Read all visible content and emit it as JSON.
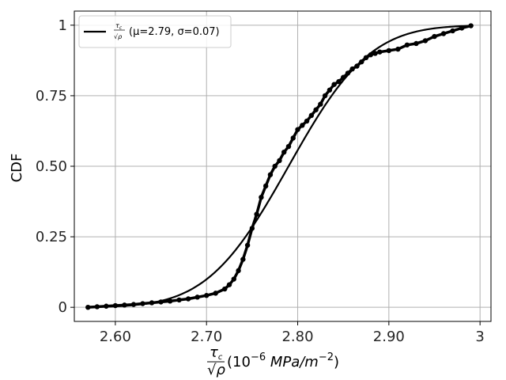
{
  "chart_data": {
    "type": "line",
    "title": "",
    "ylabel": "CDF",
    "xlabel": {
      "num": "τ",
      "num_sub": "c",
      "den": "√ρ",
      "unit_prefix": "(10",
      "unit_exp": "−6",
      "unit_main": " MPa/m",
      "unit_exp2": "−2",
      "unit_suffix": ")"
    },
    "xlim": [
      2.555,
      3.012
    ],
    "ylim": [
      -0.05,
      1.05
    ],
    "x_ticks": [
      2.6,
      2.7,
      2.8,
      2.9,
      3.0
    ],
    "x_tick_labels": [
      "2.60",
      "2.70",
      "2.80",
      "2.90",
      "3"
    ],
    "y_ticks": [
      0,
      0.25,
      0.5,
      0.75,
      1.0
    ],
    "y_tick_labels": [
      "0",
      "0.25",
      "0.50",
      "0.75",
      "1"
    ],
    "grid": true,
    "legend_position": "top-left",
    "fit": {
      "label_text": "(μ=2.79, σ=0.07)",
      "mu": 2.79,
      "sigma": 0.07,
      "color": "#000000"
    },
    "empirical": {
      "color": "#000000",
      "points": [
        [
          2.57,
          0.0
        ],
        [
          2.58,
          0.002
        ],
        [
          2.59,
          0.004
        ],
        [
          2.6,
          0.006
        ],
        [
          2.61,
          0.008
        ],
        [
          2.62,
          0.01
        ],
        [
          2.63,
          0.013
        ],
        [
          2.64,
          0.016
        ],
        [
          2.65,
          0.019
        ],
        [
          2.66,
          0.022
        ],
        [
          2.67,
          0.026
        ],
        [
          2.68,
          0.03
        ],
        [
          2.69,
          0.036
        ],
        [
          2.7,
          0.042
        ],
        [
          2.71,
          0.05
        ],
        [
          2.72,
          0.065
        ],
        [
          2.725,
          0.08
        ],
        [
          2.73,
          0.1
        ],
        [
          2.735,
          0.13
        ],
        [
          2.74,
          0.17
        ],
        [
          2.745,
          0.22
        ],
        [
          2.75,
          0.28
        ],
        [
          2.755,
          0.33
        ],
        [
          2.76,
          0.39
        ],
        [
          2.765,
          0.43
        ],
        [
          2.77,
          0.47
        ],
        [
          2.775,
          0.5
        ],
        [
          2.78,
          0.52
        ],
        [
          2.785,
          0.55
        ],
        [
          2.79,
          0.57
        ],
        [
          2.795,
          0.6
        ],
        [
          2.8,
          0.63
        ],
        [
          2.805,
          0.645
        ],
        [
          2.81,
          0.66
        ],
        [
          2.815,
          0.68
        ],
        [
          2.82,
          0.7
        ],
        [
          2.825,
          0.72
        ],
        [
          2.83,
          0.75
        ],
        [
          2.835,
          0.77
        ],
        [
          2.84,
          0.79
        ],
        [
          2.845,
          0.8
        ],
        [
          2.85,
          0.815
        ],
        [
          2.855,
          0.83
        ],
        [
          2.86,
          0.845
        ],
        [
          2.865,
          0.855
        ],
        [
          2.87,
          0.87
        ],
        [
          2.875,
          0.885
        ],
        [
          2.88,
          0.895
        ],
        [
          2.885,
          0.9
        ],
        [
          2.89,
          0.905
        ],
        [
          2.9,
          0.91
        ],
        [
          2.91,
          0.915
        ],
        [
          2.92,
          0.93
        ],
        [
          2.93,
          0.935
        ],
        [
          2.94,
          0.945
        ],
        [
          2.95,
          0.96
        ],
        [
          2.96,
          0.97
        ],
        [
          2.97,
          0.98
        ],
        [
          2.98,
          0.99
        ],
        [
          2.99,
          0.998
        ]
      ]
    }
  }
}
